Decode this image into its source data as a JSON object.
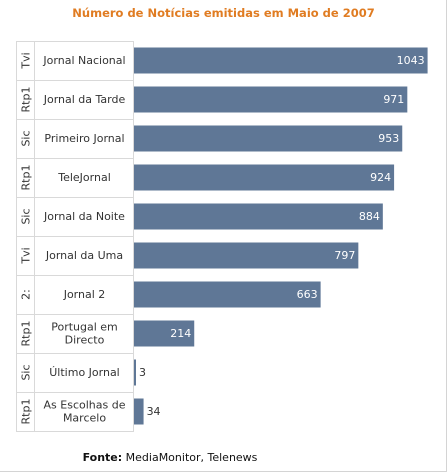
{
  "title": "Número de Notícias emitidas em Maio de 2007",
  "source_label": "Fonte:",
  "source_text": "MediaMonitor, Telenews",
  "colors": {
    "bar": "#5f7796",
    "title": "#e07c22",
    "value_inside": "#ffffff",
    "value_outside": "#333333"
  },
  "chart_data": {
    "type": "bar",
    "orientation": "horizontal",
    "title": "Número de Notícias emitidas em Maio de 2007",
    "categories": [
      {
        "group": "Tvi",
        "label": [
          "Jornal Nacional"
        ]
      },
      {
        "group": "Rtp1",
        "label": [
          "Jornal da Tarde"
        ]
      },
      {
        "group": "Sic",
        "label": [
          "Primeiro Jornal"
        ]
      },
      {
        "group": "Rtp1",
        "label": [
          "TeleJornal"
        ]
      },
      {
        "group": "Sic",
        "label": [
          "Jornal da Noite"
        ]
      },
      {
        "group": "Tvi",
        "label": [
          "Jornal da Uma"
        ]
      },
      {
        "group": "2:",
        "label": [
          "Jornal 2"
        ]
      },
      {
        "group": "Rtp1",
        "label": [
          "Portugal em",
          "Directo"
        ]
      },
      {
        "group": "Sic",
        "label": [
          "Último Jornal"
        ]
      },
      {
        "group": "Rtp1",
        "label": [
          "As Escolhas de",
          "Marcelo"
        ]
      }
    ],
    "values": [
      1043,
      971,
      953,
      924,
      884,
      797,
      663,
      214,
      3,
      34
    ],
    "xlim": [
      0,
      1080
    ],
    "grid": false,
    "legend": "none"
  }
}
